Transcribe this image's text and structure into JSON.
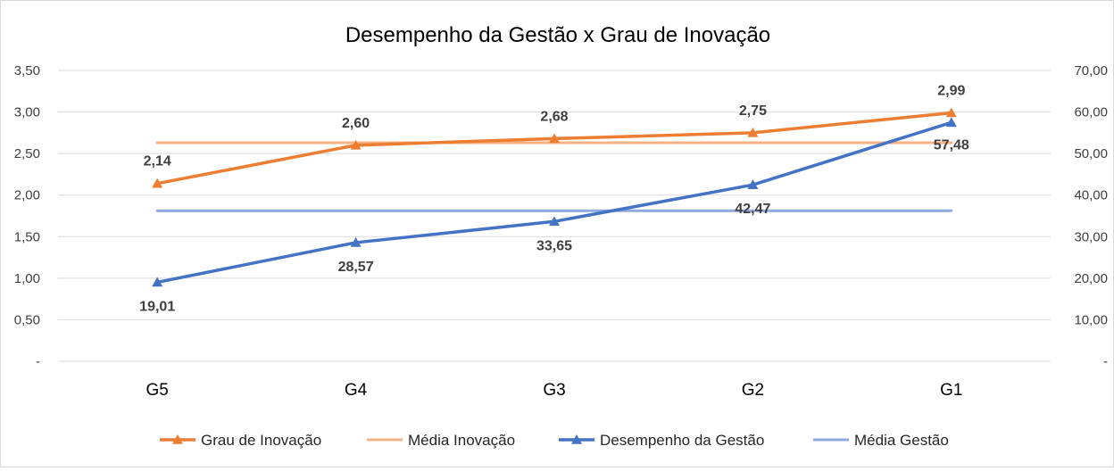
{
  "chart_data": {
    "type": "line",
    "title": "Desempenho da Gestão x Grau de Inovação",
    "categories": [
      "G5",
      "G4",
      "G3",
      "G2",
      "G1"
    ],
    "y_left": {
      "ylim": [
        0,
        3.5
      ],
      "ticks": [
        {
          "value": 0,
          "label": "-"
        },
        {
          "value": 0.5,
          "label": "0,50"
        },
        {
          "value": 1.0,
          "label": "1,00"
        },
        {
          "value": 1.5,
          "label": "1,50"
        },
        {
          "value": 2.0,
          "label": "2,00"
        },
        {
          "value": 2.5,
          "label": "2,50"
        },
        {
          "value": 3.0,
          "label": "3,00"
        },
        {
          "value": 3.5,
          "label": "3,50"
        }
      ]
    },
    "y_right": {
      "ylim": [
        0,
        70
      ],
      "ticks": [
        {
          "value": 0,
          "label": "-"
        },
        {
          "value": 10,
          "label": "10,00"
        },
        {
          "value": 20,
          "label": "20,00"
        },
        {
          "value": 30,
          "label": "30,00"
        },
        {
          "value": 40,
          "label": "40,00"
        },
        {
          "value": 50,
          "label": "50,00"
        },
        {
          "value": 60,
          "label": "60,00"
        },
        {
          "value": 70,
          "label": "70,00"
        }
      ]
    },
    "series": [
      {
        "name": "Grau de Inovação",
        "axis": "left",
        "color": "#ed7d31",
        "marker": "triangle",
        "values": [
          2.14,
          2.6,
          2.68,
          2.75,
          2.99
        ],
        "labels": [
          "2,14",
          "2,60",
          "2,68",
          "2,75",
          "2,99"
        ],
        "label_position": "above"
      },
      {
        "name": "Média Inovação",
        "axis": "left",
        "color": "#f4b183",
        "marker": "none",
        "values": [
          2.63,
          2.63,
          2.63,
          2.63,
          2.63
        ]
      },
      {
        "name": "Desempenho da Gestão",
        "axis": "right",
        "color": "#4472c4",
        "marker": "triangle",
        "values": [
          19.01,
          28.57,
          33.65,
          42.47,
          57.48
        ],
        "labels": [
          "19,01",
          "28,57",
          "33,65",
          "42,47",
          "57,48"
        ],
        "label_position": "below"
      },
      {
        "name": "Média Gestão",
        "axis": "right",
        "color": "#8faadc",
        "marker": "none",
        "values": [
          36.24,
          36.24,
          36.24,
          36.24,
          36.24
        ]
      }
    ],
    "grid": true,
    "legend": "bottom"
  }
}
